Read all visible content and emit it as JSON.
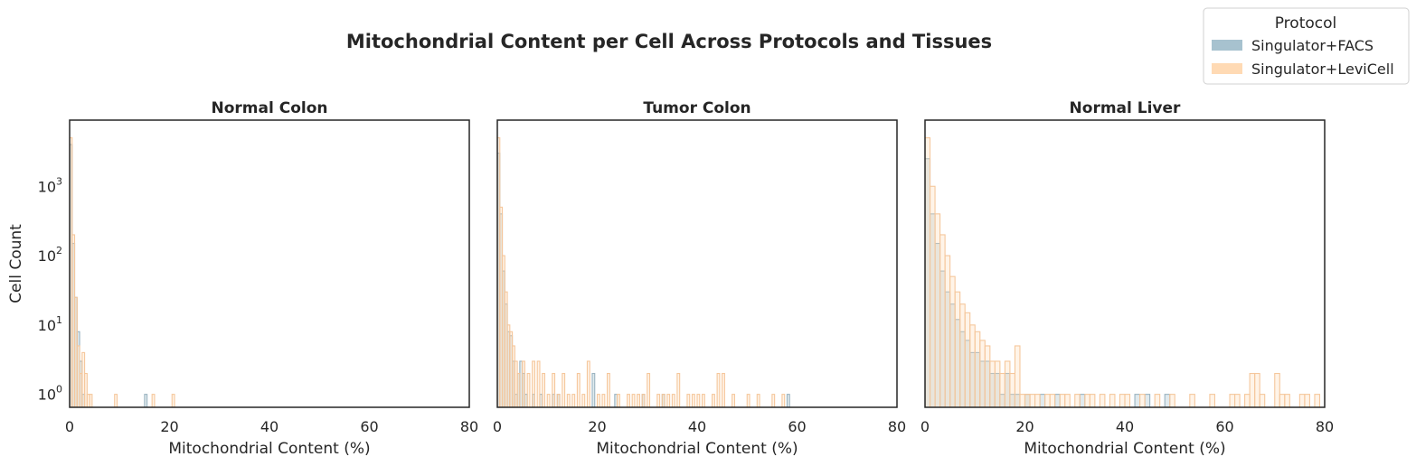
{
  "figure": {
    "title": "Mitochondrial Content per Cell Across Protocols and Tissues"
  },
  "legend": {
    "title": "Protocol",
    "placement": "top-right",
    "entries": [
      {
        "label": "Singulator+FACS",
        "color": "#a7c2cf"
      },
      {
        "label": "Singulator+LeviCell",
        "color": "#ffdab4"
      }
    ]
  },
  "colors": {
    "facs_fill": "#a7c2cf",
    "facs_line": "#9ab3c0",
    "levicell_fill": "#ffdab4",
    "levicell_line": "#f5c79c",
    "axis": "#262626"
  },
  "chart_data": [
    {
      "type": "histogram",
      "title": "Normal Colon",
      "xlabel": "Mitochondrial Content (%)",
      "ylabel": "Cell Count",
      "yscale": "log",
      "xlim": [
        0,
        80
      ],
      "ylim": [
        0.65,
        9000
      ],
      "bin_width": 0.5,
      "xticks": [
        0,
        20,
        40,
        60,
        80
      ],
      "yticks": [
        "10^0",
        "10^1",
        "10^2",
        "10^3"
      ],
      "grid": false,
      "series": [
        {
          "name": "Singulator+FACS",
          "bins": [
            [
              0,
              4000
            ],
            [
              0.5,
              150
            ],
            [
              1,
              25
            ],
            [
              1.5,
              8
            ],
            [
              2,
              3
            ],
            [
              2.5,
              1
            ],
            [
              15,
              1
            ]
          ]
        },
        {
          "name": "Singulator+LeviCell",
          "bins": [
            [
              0,
              5000
            ],
            [
              0.5,
              200
            ],
            [
              1,
              25
            ],
            [
              1.5,
              5
            ],
            [
              2,
              2
            ],
            [
              2.5,
              4
            ],
            [
              3,
              2
            ],
            [
              3.5,
              1
            ],
            [
              4,
              1
            ],
            [
              9,
              1
            ],
            [
              16.5,
              1
            ],
            [
              20.5,
              1
            ]
          ]
        }
      ]
    },
    {
      "type": "histogram",
      "title": "Tumor Colon",
      "xlabel": "Mitochondrial Content (%)",
      "ylabel": "",
      "yscale": "log",
      "xlim": [
        0,
        80
      ],
      "ylim": [
        0.65,
        9000
      ],
      "bin_width": 0.5,
      "xticks": [
        0,
        20,
        40,
        60,
        80
      ],
      "yticks": [],
      "grid": false,
      "series": [
        {
          "name": "Singulator+FACS",
          "bins": [
            [
              0,
              3000
            ],
            [
              0.5,
              400
            ],
            [
              1,
              60
            ],
            [
              1.5,
              20
            ],
            [
              2,
              8
            ],
            [
              2.5,
              7
            ],
            [
              3,
              3
            ],
            [
              3.5,
              1
            ],
            [
              4,
              2
            ],
            [
              4.5,
              3
            ],
            [
              5,
              2
            ],
            [
              5.5,
              1
            ],
            [
              7,
              1
            ],
            [
              8.5,
              1
            ],
            [
              11,
              1
            ],
            [
              12,
              1
            ],
            [
              19,
              2
            ],
            [
              23.5,
              1
            ],
            [
              29,
              1
            ],
            [
              33,
              1
            ],
            [
              58,
              1
            ]
          ]
        },
        {
          "name": "Singulator+LeviCell",
          "bins": [
            [
              0,
              5000
            ],
            [
              0.5,
              500
            ],
            [
              1,
              100
            ],
            [
              1.5,
              30
            ],
            [
              2,
              10
            ],
            [
              2.5,
              8
            ],
            [
              3,
              5
            ],
            [
              3.5,
              3
            ],
            [
              4,
              2
            ],
            [
              5,
              3
            ],
            [
              6,
              2
            ],
            [
              7,
              3
            ],
            [
              8,
              3
            ],
            [
              9,
              2
            ],
            [
              10,
              1
            ],
            [
              11,
              2
            ],
            [
              12,
              1
            ],
            [
              13,
              2
            ],
            [
              14,
              1
            ],
            [
              15,
              1
            ],
            [
              16,
              2
            ],
            [
              17,
              1
            ],
            [
              18,
              3
            ],
            [
              20,
              1
            ],
            [
              21,
              1
            ],
            [
              22,
              2
            ],
            [
              24,
              1
            ],
            [
              26,
              1
            ],
            [
              27,
              1
            ],
            [
              28,
              1
            ],
            [
              29,
              1
            ],
            [
              30,
              2
            ],
            [
              32,
              1
            ],
            [
              33,
              1
            ],
            [
              34,
              1
            ],
            [
              35,
              1
            ],
            [
              36,
              2
            ],
            [
              38,
              1
            ],
            [
              39,
              1
            ],
            [
              40,
              1
            ],
            [
              41,
              1
            ],
            [
              43,
              1
            ],
            [
              44,
              2
            ],
            [
              45,
              2
            ],
            [
              47,
              1
            ],
            [
              50,
              1
            ],
            [
              52,
              1
            ],
            [
              55,
              1
            ],
            [
              57,
              1
            ]
          ]
        }
      ]
    },
    {
      "type": "histogram",
      "title": "Normal Liver",
      "xlabel": "Mitochondrial Content (%)",
      "ylabel": "",
      "yscale": "log",
      "xlim": [
        0,
        80
      ],
      "ylim": [
        0.65,
        9000
      ],
      "bin_width": 1,
      "xticks": [
        0,
        20,
        40,
        60,
        80
      ],
      "yticks": [],
      "grid": false,
      "series": [
        {
          "name": "Singulator+FACS",
          "bins": [
            [
              0,
              2500
            ],
            [
              1,
              400
            ],
            [
              2,
              150
            ],
            [
              3,
              60
            ],
            [
              4,
              30
            ],
            [
              5,
              20
            ],
            [
              6,
              12
            ],
            [
              7,
              8
            ],
            [
              8,
              6
            ],
            [
              9,
              4
            ],
            [
              10,
              4
            ],
            [
              11,
              3
            ],
            [
              12,
              3
            ],
            [
              13,
              2
            ],
            [
              14,
              2
            ],
            [
              15,
              1
            ],
            [
              16,
              2
            ],
            [
              17,
              1
            ],
            [
              18,
              1
            ],
            [
              20,
              1
            ],
            [
              23,
              1
            ],
            [
              26,
              1
            ],
            [
              31,
              1
            ],
            [
              42,
              1
            ],
            [
              44,
              1
            ],
            [
              48,
              1
            ]
          ]
        },
        {
          "name": "Singulator+LeviCell",
          "bins": [
            [
              0,
              5000
            ],
            [
              1,
              1000
            ],
            [
              2,
              400
            ],
            [
              3,
              200
            ],
            [
              4,
              100
            ],
            [
              5,
              50
            ],
            [
              6,
              30
            ],
            [
              7,
              20
            ],
            [
              8,
              15
            ],
            [
              9,
              10
            ],
            [
              10,
              8
            ],
            [
              11,
              6
            ],
            [
              12,
              5
            ],
            [
              13,
              3
            ],
            [
              14,
              3
            ],
            [
              15,
              2
            ],
            [
              16,
              3
            ],
            [
              17,
              2
            ],
            [
              18,
              5
            ],
            [
              19,
              1
            ],
            [
              20,
              1
            ],
            [
              21,
              1
            ],
            [
              22,
              1
            ],
            [
              24,
              1
            ],
            [
              25,
              1
            ],
            [
              27,
              1
            ],
            [
              28,
              1
            ],
            [
              30,
              1
            ],
            [
              32,
              1
            ],
            [
              33,
              1
            ],
            [
              35,
              1
            ],
            [
              37,
              1
            ],
            [
              39,
              1
            ],
            [
              40,
              1
            ],
            [
              43,
              1
            ],
            [
              46,
              1
            ],
            [
              49,
              1
            ],
            [
              53,
              1
            ],
            [
              57,
              1
            ],
            [
              61,
              1
            ],
            [
              62,
              1
            ],
            [
              64,
              1
            ],
            [
              65,
              2
            ],
            [
              66,
              2
            ],
            [
              67,
              1
            ],
            [
              70,
              2
            ],
            [
              71,
              1
            ],
            [
              72,
              1
            ],
            [
              75,
              1
            ],
            [
              76,
              1
            ],
            [
              78,
              1
            ],
            [
              80,
              1
            ]
          ]
        }
      ]
    }
  ]
}
